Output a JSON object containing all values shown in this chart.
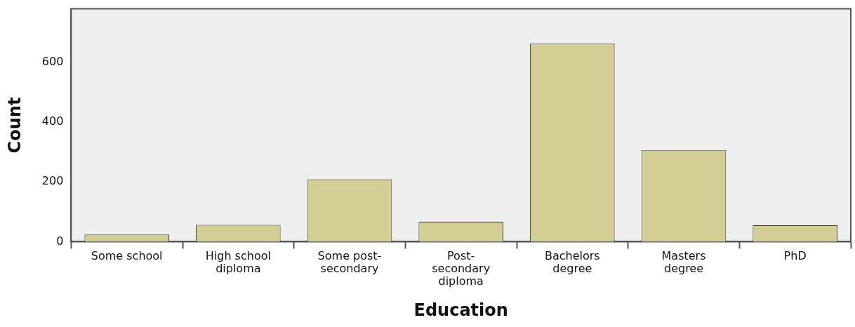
{
  "chart_data": {
    "type": "bar",
    "xlabel": "Education",
    "ylabel": "Count",
    "categories": [
      "Some school",
      "High school diploma",
      "Some post-secondary",
      "Post-secondary diploma",
      "Bachelors degree",
      "Masters degree",
      "PhD"
    ],
    "values": [
      24,
      56,
      209,
      67,
      663,
      306,
      55
    ],
    "color": "#d3cd96",
    "ylim": [
      0,
      780
    ],
    "yticks": [
      0,
      200,
      400,
      600
    ],
    "grid": false,
    "legend": false
  }
}
